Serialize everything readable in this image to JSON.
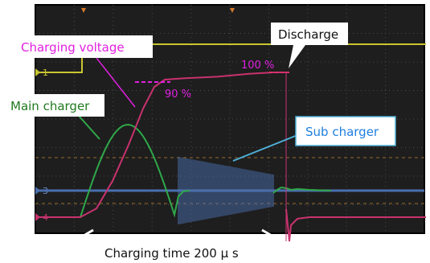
{
  "labels": {
    "charging_voltage": "Charging voltage",
    "main_charger": "Main charger",
    "sub_charger": "Sub charger",
    "discharge": "Discharge",
    "pct_90": "90 %",
    "pct_100": "100 %",
    "charging_time": "Charging time 200 μ s"
  },
  "scope": {
    "channel_markers": [
      "1",
      "3",
      "4"
    ]
  },
  "colors": {
    "screen_bg": "#1e1e1e",
    "frame": "#000000",
    "grid": "#5a5a5a",
    "charging_voltage": "#c8326e",
    "main_charger": "#2fa84a",
    "sub_charger": "#4a6fae",
    "channel1": "#c9c62f",
    "callout_pink_text": "#e020e0",
    "callout_green_text": "#207a20",
    "callout_blue_text": "#1f7fe0",
    "callout_blue_line": "#4fb0d8"
  },
  "chart_data": {
    "type": "line",
    "title": "",
    "xlabel": "",
    "ylabel": "",
    "series": [
      {
        "name": "Charging voltage",
        "color": "#c8326e",
        "x": [
          0,
          20,
          45,
          70,
          90,
          105,
          130,
          160,
          200,
          240,
          255
        ],
        "y": [
          0,
          2,
          25,
          60,
          88,
          93,
          95,
          97,
          100,
          100,
          100
        ]
      },
      {
        "name": "Main charger",
        "color": "#2fa84a",
        "x": [
          0,
          20,
          35,
          50,
          65,
          80,
          95,
          105,
          115,
          125
        ],
        "y": [
          0,
          0,
          40,
          80,
          95,
          80,
          40,
          5,
          -8,
          0
        ]
      },
      {
        "name": "Sub charger",
        "color": "#4a6fae",
        "x": [
          125,
          140,
          160,
          180,
          200,
          225,
          245
        ],
        "y": [
          95,
          90,
          80,
          70,
          60,
          50,
          45
        ]
      }
    ]
  }
}
